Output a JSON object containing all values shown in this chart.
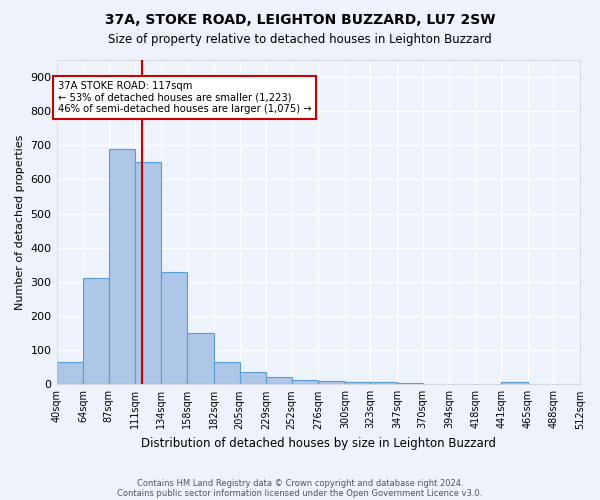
{
  "title": "37A, STOKE ROAD, LEIGHTON BUZZARD, LU7 2SW",
  "subtitle": "Size of property relative to detached houses in Leighton Buzzard",
  "xlabel": "Distribution of detached houses by size in Leighton Buzzard",
  "ylabel": "Number of detached properties",
  "footnote1": "Contains HM Land Registry data © Crown copyright and database right 2024.",
  "footnote2": "Contains public sector information licensed under the Open Government Licence v3.0.",
  "bins": [
    40,
    64,
    87,
    111,
    134,
    158,
    182,
    205,
    229,
    252,
    276,
    300,
    323,
    347,
    370,
    394,
    418,
    441,
    465,
    488,
    512
  ],
  "bin_labels": [
    "40sqm",
    "64sqm",
    "87sqm",
    "111sqm",
    "134sqm",
    "158sqm",
    "182sqm",
    "205sqm",
    "229sqm",
    "252sqm",
    "276sqm",
    "300sqm",
    "323sqm",
    "347sqm",
    "370sqm",
    "394sqm",
    "418sqm",
    "441sqm",
    "465sqm",
    "488sqm",
    "512sqm"
  ],
  "values": [
    64,
    310,
    690,
    650,
    330,
    150,
    65,
    35,
    20,
    12,
    10,
    8,
    6,
    5,
    0,
    0,
    0,
    8,
    0,
    0
  ],
  "bar_color": "#aec6e8",
  "bar_edge_color": "#5a9fd4",
  "bg_color": "#eef2fb",
  "grid_color": "#ffffff",
  "vline_x": 117,
  "vline_color": "#cc0000",
  "annotation_text": "37A STOKE ROAD: 117sqm\n← 53% of detached houses are smaller (1,223)\n46% of semi-detached houses are larger (1,075) →",
  "annotation_box_color": "#ffffff",
  "annotation_box_edge_color": "#cc0000",
  "ylim": [
    0,
    950
  ],
  "yticks": [
    0,
    100,
    200,
    300,
    400,
    500,
    600,
    700,
    800,
    900
  ]
}
